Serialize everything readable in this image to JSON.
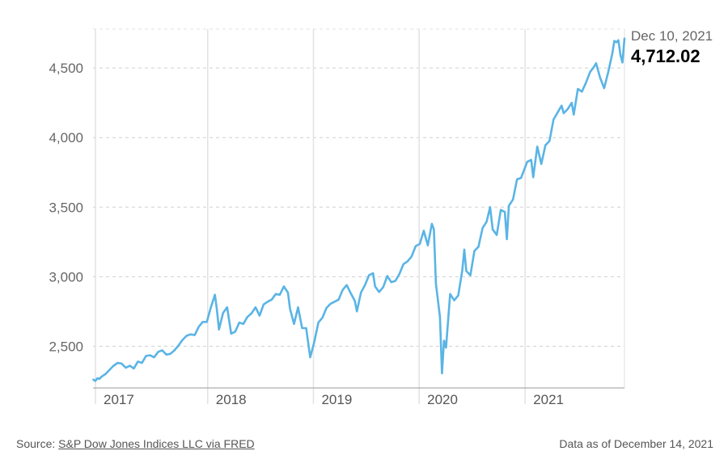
{
  "chart_data": {
    "type": "line",
    "y_ticks": [
      "2,500",
      "3,000",
      "3,500",
      "4,000",
      "4,500"
    ],
    "y_tick_values": [
      2500,
      3000,
      3500,
      4000,
      4500
    ],
    "ylim": [
      2200,
      4780
    ],
    "x_labels": [
      "2017",
      "2018",
      "2019",
      "2020",
      "2021"
    ],
    "x_label_dates": [
      "2017-01-01",
      "2018-01-01",
      "2019-01-01",
      "2020-01-01",
      "2021-01-01"
    ],
    "xlim": [
      "2016-12-01",
      "2021-12-10"
    ],
    "grid": {
      "horizontal": "dashed",
      "vertical": "solid"
    },
    "line_color": "#5ab4e5",
    "series": [
      {
        "points": [
          [
            "2016-12-02",
            2260
          ],
          [
            "2016-12-09",
            2250
          ],
          [
            "2016-12-16",
            2270
          ],
          [
            "2016-12-23",
            2265
          ],
          [
            "2016-12-30",
            2280
          ],
          [
            "2017-01-13",
            2300
          ],
          [
            "2017-01-27",
            2330
          ],
          [
            "2017-02-10",
            2360
          ],
          [
            "2017-02-24",
            2380
          ],
          [
            "2017-03-10",
            2375
          ],
          [
            "2017-03-24",
            2345
          ],
          [
            "2017-04-07",
            2360
          ],
          [
            "2017-04-21",
            2340
          ],
          [
            "2017-05-05",
            2390
          ],
          [
            "2017-05-19",
            2380
          ],
          [
            "2017-06-02",
            2430
          ],
          [
            "2017-06-16",
            2435
          ],
          [
            "2017-06-30",
            2420
          ],
          [
            "2017-07-14",
            2460
          ],
          [
            "2017-07-28",
            2470
          ],
          [
            "2017-08-11",
            2440
          ],
          [
            "2017-08-25",
            2445
          ],
          [
            "2017-09-08",
            2470
          ],
          [
            "2017-09-22",
            2505
          ],
          [
            "2017-10-06",
            2545
          ],
          [
            "2017-10-20",
            2575
          ],
          [
            "2017-11-03",
            2585
          ],
          [
            "2017-11-17",
            2580
          ],
          [
            "2017-12-01",
            2640
          ],
          [
            "2017-12-15",
            2675
          ],
          [
            "2017-12-29",
            2675
          ],
          [
            "2018-01-12",
            2780
          ],
          [
            "2018-01-26",
            2870
          ],
          [
            "2018-02-02",
            2760
          ],
          [
            "2018-02-09",
            2620
          ],
          [
            "2018-02-23",
            2740
          ],
          [
            "2018-03-09",
            2780
          ],
          [
            "2018-03-23",
            2590
          ],
          [
            "2018-04-06",
            2605
          ],
          [
            "2018-04-20",
            2670
          ],
          [
            "2018-05-04",
            2660
          ],
          [
            "2018-05-18",
            2710
          ],
          [
            "2018-06-01",
            2735
          ],
          [
            "2018-06-15",
            2780
          ],
          [
            "2018-06-29",
            2720
          ],
          [
            "2018-07-13",
            2800
          ],
          [
            "2018-07-27",
            2820
          ],
          [
            "2018-08-10",
            2835
          ],
          [
            "2018-08-24",
            2875
          ],
          [
            "2018-09-07",
            2870
          ],
          [
            "2018-09-21",
            2930
          ],
          [
            "2018-10-05",
            2885
          ],
          [
            "2018-10-12",
            2770
          ],
          [
            "2018-10-26",
            2660
          ],
          [
            "2018-11-09",
            2780
          ],
          [
            "2018-11-23",
            2630
          ],
          [
            "2018-12-07",
            2630
          ],
          [
            "2018-12-21",
            2420
          ],
          [
            "2019-01-04",
            2530
          ],
          [
            "2019-01-18",
            2670
          ],
          [
            "2019-02-01",
            2705
          ],
          [
            "2019-02-15",
            2775
          ],
          [
            "2019-03-01",
            2805
          ],
          [
            "2019-03-15",
            2820
          ],
          [
            "2019-03-29",
            2835
          ],
          [
            "2019-04-12",
            2905
          ],
          [
            "2019-04-26",
            2940
          ],
          [
            "2019-05-10",
            2880
          ],
          [
            "2019-05-24",
            2825
          ],
          [
            "2019-05-31",
            2750
          ],
          [
            "2019-06-14",
            2885
          ],
          [
            "2019-06-28",
            2940
          ],
          [
            "2019-07-12",
            3010
          ],
          [
            "2019-07-26",
            3025
          ],
          [
            "2019-08-02",
            2930
          ],
          [
            "2019-08-16",
            2890
          ],
          [
            "2019-08-30",
            2925
          ],
          [
            "2019-09-13",
            3005
          ],
          [
            "2019-09-27",
            2960
          ],
          [
            "2019-10-11",
            2970
          ],
          [
            "2019-10-25",
            3020
          ],
          [
            "2019-11-08",
            3090
          ],
          [
            "2019-11-22",
            3110
          ],
          [
            "2019-12-06",
            3145
          ],
          [
            "2019-12-20",
            3220
          ],
          [
            "2020-01-03",
            3235
          ],
          [
            "2020-01-17",
            3330
          ],
          [
            "2020-01-31",
            3225
          ],
          [
            "2020-02-14",
            3380
          ],
          [
            "2020-02-21",
            3340
          ],
          [
            "2020-02-28",
            2950
          ],
          [
            "2020-03-13",
            2710
          ],
          [
            "2020-03-20",
            2305
          ],
          [
            "2020-03-27",
            2540
          ],
          [
            "2020-04-03",
            2490
          ],
          [
            "2020-04-17",
            2875
          ],
          [
            "2020-05-01",
            2830
          ],
          [
            "2020-05-15",
            2865
          ],
          [
            "2020-05-29",
            3045
          ],
          [
            "2020-06-05",
            3195
          ],
          [
            "2020-06-12",
            3040
          ],
          [
            "2020-06-26",
            3010
          ],
          [
            "2020-07-10",
            3185
          ],
          [
            "2020-07-24",
            3215
          ],
          [
            "2020-08-07",
            3350
          ],
          [
            "2020-08-21",
            3395
          ],
          [
            "2020-09-02",
            3500
          ],
          [
            "2020-09-11",
            3340
          ],
          [
            "2020-09-25",
            3300
          ],
          [
            "2020-10-09",
            3480
          ],
          [
            "2020-10-23",
            3465
          ],
          [
            "2020-10-30",
            3270
          ],
          [
            "2020-11-06",
            3510
          ],
          [
            "2020-11-20",
            3555
          ],
          [
            "2020-12-04",
            3700
          ],
          [
            "2020-12-18",
            3710
          ],
          [
            "2021-01-08",
            3825
          ],
          [
            "2021-01-22",
            3840
          ],
          [
            "2021-01-29",
            3715
          ],
          [
            "2021-02-12",
            3935
          ],
          [
            "2021-02-26",
            3810
          ],
          [
            "2021-03-12",
            3945
          ],
          [
            "2021-03-26",
            3975
          ],
          [
            "2021-04-09",
            4130
          ],
          [
            "2021-04-23",
            4180
          ],
          [
            "2021-05-07",
            4230
          ],
          [
            "2021-05-14",
            4175
          ],
          [
            "2021-05-28",
            4205
          ],
          [
            "2021-06-11",
            4250
          ],
          [
            "2021-06-18",
            4165
          ],
          [
            "2021-07-02",
            4350
          ],
          [
            "2021-07-16",
            4330
          ],
          [
            "2021-07-30",
            4395
          ],
          [
            "2021-08-13",
            4470
          ],
          [
            "2021-08-27",
            4510
          ],
          [
            "2021-09-03",
            4535
          ],
          [
            "2021-09-17",
            4430
          ],
          [
            "2021-10-01",
            4355
          ],
          [
            "2021-10-15",
            4470
          ],
          [
            "2021-10-29",
            4605
          ],
          [
            "2021-11-05",
            4695
          ],
          [
            "2021-11-12",
            4685
          ],
          [
            "2021-11-19",
            4700
          ],
          [
            "2021-11-26",
            4595
          ],
          [
            "2021-12-03",
            4540
          ],
          [
            "2021-12-10",
            4712.02
          ]
        ]
      }
    ],
    "annotation": {
      "date_label": "Dec 10, 2021",
      "value_label": "4,712.02"
    }
  },
  "footer": {
    "source_prefix": "Source: ",
    "source_link": "S&P Dow Jones Indices LLC via FRED",
    "data_as_of": "Data as of December 14, 2021"
  }
}
